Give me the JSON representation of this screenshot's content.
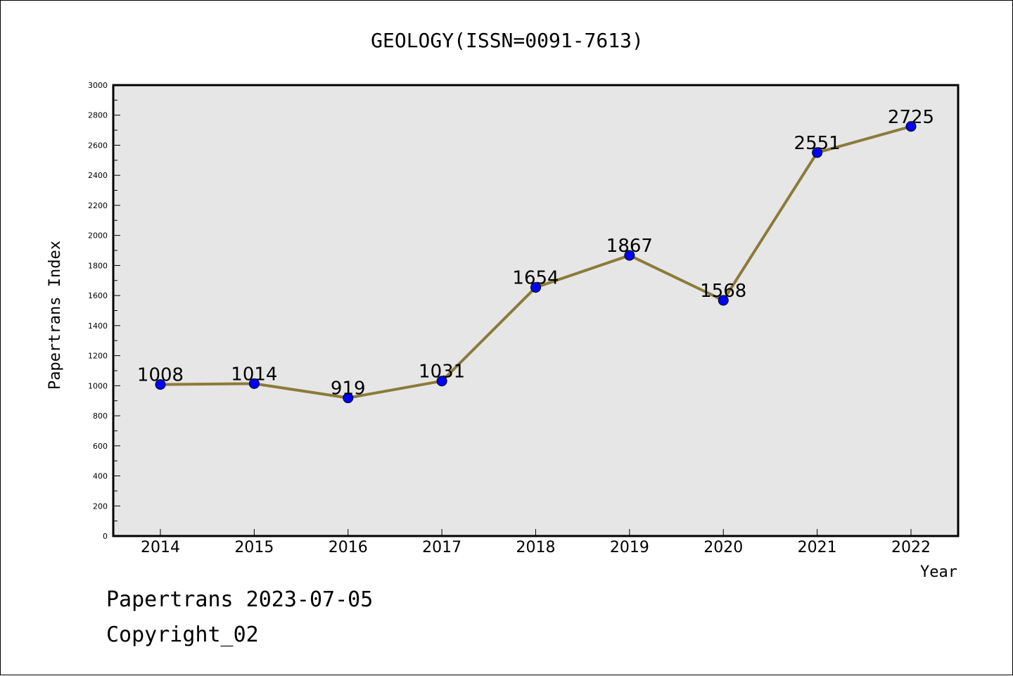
{
  "chart_data": {
    "type": "line",
    "title": "GEOLOGY(ISSN=0091-7613)",
    "xlabel": "Year",
    "ylabel": "Papertrans Index",
    "categories": [
      "2014",
      "2015",
      "2016",
      "2017",
      "2018",
      "2019",
      "2020",
      "2021",
      "2022"
    ],
    "series": [
      {
        "values": [
          1008,
          1014,
          919,
          1031,
          1654,
          1867,
          1568,
          2551,
          2725
        ]
      }
    ],
    "ylim": [
      0,
      3000
    ],
    "yticks": [
      0,
      200,
      400,
      600,
      800,
      1000,
      1200,
      1400,
      1600,
      1800,
      2000,
      2200,
      2400,
      2600,
      2800,
      3000
    ],
    "data_labels": [
      "1008",
      "1014",
      "919",
      "1031",
      "1654",
      "1867",
      "1568",
      "2551",
      "2725"
    ],
    "grid": false,
    "colors": {
      "line": "#8c7a3a",
      "marker": "#0000ff",
      "plot_bg": "#e6e6e6"
    }
  },
  "footer": {
    "line1": "Papertrans 2023-07-05",
    "line2": "Copyright_02"
  }
}
